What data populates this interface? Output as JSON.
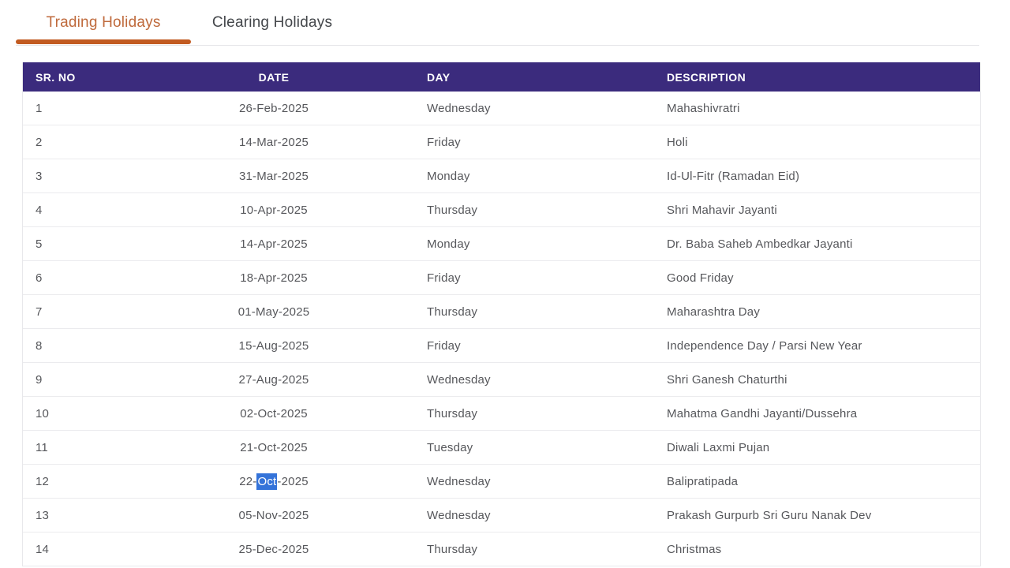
{
  "tabs": [
    {
      "label": "Trading Holidays",
      "active": true
    },
    {
      "label": "Clearing Holidays",
      "active": false
    }
  ],
  "table": {
    "columns": [
      "SR. NO",
      "DATE",
      "DAY",
      "DESCRIPTION"
    ],
    "rows": [
      [
        "1",
        "26-Feb-2025",
        "Wednesday",
        "Mahashivratri"
      ],
      [
        "2",
        "14-Mar-2025",
        "Friday",
        "Holi"
      ],
      [
        "3",
        "31-Mar-2025",
        "Monday",
        "Id-Ul-Fitr (Ramadan Eid)"
      ],
      [
        "4",
        "10-Apr-2025",
        "Thursday",
        "Shri Mahavir Jayanti"
      ],
      [
        "5",
        "14-Apr-2025",
        "Monday",
        "Dr. Baba Saheb Ambedkar Jayanti"
      ],
      [
        "6",
        "18-Apr-2025",
        "Friday",
        "Good Friday"
      ],
      [
        "7",
        "01-May-2025",
        "Thursday",
        "Maharashtra Day"
      ],
      [
        "8",
        "15-Aug-2025",
        "Friday",
        "Independence Day / Parsi New Year"
      ],
      [
        "9",
        "27-Aug-2025",
        "Wednesday",
        "Shri Ganesh Chaturthi"
      ],
      [
        "10",
        "02-Oct-2025",
        "Thursday",
        "Mahatma Gandhi Jayanti/Dussehra"
      ],
      [
        "11",
        "21-Oct-2025",
        "Tuesday",
        "Diwali Laxmi Pujan"
      ],
      [
        "12",
        "22-Oct-2025",
        "Wednesday",
        "Balipratipada"
      ],
      [
        "13",
        "05-Nov-2025",
        "Wednesday",
        "Prakash Gurpurb Sri Guru Nanak Dev"
      ],
      [
        "14",
        "25-Dec-2025",
        "Thursday",
        "Christmas"
      ]
    ],
    "text_selection": {
      "row_index": 11,
      "column_index": 1,
      "before": "22-",
      "selected_text": "Oct",
      "after": "-2025"
    }
  },
  "colors": {
    "header_bg": "#3b2b7d",
    "active_tab_text": "#bf6a3c",
    "tab_underline": "#c25b21",
    "inactive_tab_text": "#44474b",
    "body_text": "#56575b",
    "selection_bg": "#3473d9",
    "selection_text": "#ffffff"
  }
}
